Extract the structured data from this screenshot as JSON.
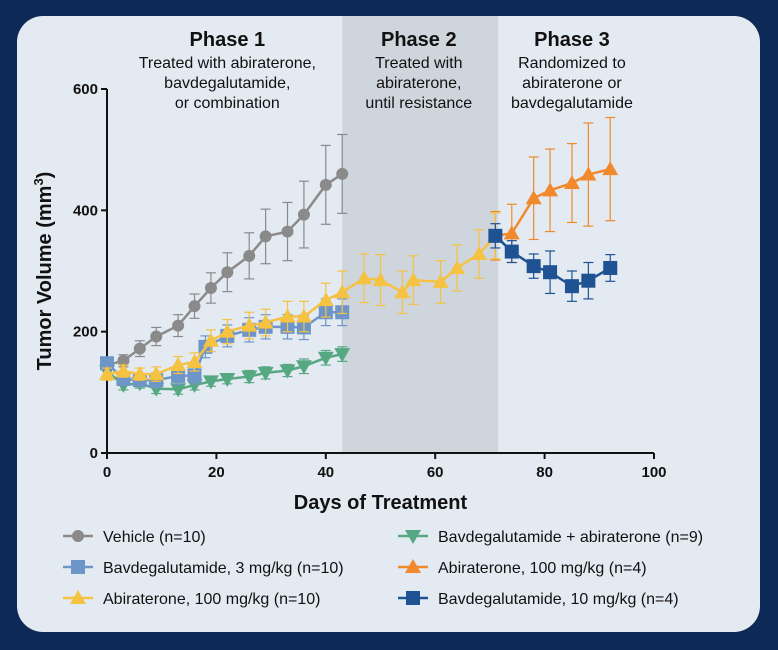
{
  "chart_data": {
    "type": "line",
    "xlabel": "Days of Treatment",
    "ylabel": "Tumor Volume (mm",
    "ylabel_sup": "3",
    "ylabel_close": ")",
    "xlim": [
      0,
      100
    ],
    "ylim": [
      0,
      600
    ],
    "xticks": [
      "0",
      "20",
      "40",
      "60",
      "80",
      "100"
    ],
    "yticks": [
      "0",
      "200",
      "400",
      "600"
    ],
    "grid": false,
    "legend_position": "bottom",
    "phases": [
      {
        "title": "Phase 1",
        "lines": [
          "Treated with abiraterone,",
          "bavdegalutamide,",
          "or combination"
        ],
        "x_center": 22
      },
      {
        "title": "Phase 2",
        "lines": [
          "Treated with",
          "abiraterone,",
          "until resistance"
        ],
        "x_center": 57,
        "shaded_range": [
          43,
          71.5
        ]
      },
      {
        "title": "Phase 3",
        "lines": [
          "Randomized to",
          "abiraterone or",
          "bavdegalutamide"
        ],
        "x_center": 85
      }
    ],
    "series": [
      {
        "name": "Vehicle (n=10)",
        "color": "#8a8a8a",
        "marker": "circle",
        "x": [
          0,
          3,
          6,
          9,
          13,
          16,
          19,
          22,
          26,
          29,
          33,
          36,
          40,
          43
        ],
        "y": [
          145,
          152,
          172,
          192,
          210,
          242,
          272,
          298,
          325,
          357,
          365,
          393,
          442,
          460
        ],
        "err": [
          10,
          10,
          13,
          15,
          18,
          20,
          25,
          32,
          38,
          45,
          48,
          55,
          65,
          65
        ]
      },
      {
        "name": "Bavdegalutamide + abiraterone (n=9)",
        "color": "#56a882",
        "marker": "triangle-down",
        "x": [
          0,
          3,
          6,
          9,
          13,
          16,
          19,
          22,
          26,
          29,
          33,
          36,
          40,
          43
        ],
        "y": [
          135,
          112,
          115,
          106,
          105,
          112,
          118,
          122,
          126,
          132,
          136,
          143,
          157,
          163
        ],
        "err": [
          8,
          8,
          8,
          8,
          8,
          8,
          8,
          8,
          10,
          10,
          10,
          12,
          12,
          12
        ]
      },
      {
        "name": "Bavdegalutamide, 3 mg/kg (n=10)",
        "color": "#6e95c8",
        "marker": "square",
        "x": [
          0,
          3,
          6,
          9,
          13,
          16,
          18,
          22,
          26,
          29,
          33,
          36,
          40,
          43
        ],
        "y": [
          148,
          122,
          120,
          120,
          127,
          128,
          175,
          193,
          203,
          208,
          208,
          207,
          232,
          232
        ],
        "err": [
          10,
          10,
          10,
          12,
          14,
          14,
          18,
          18,
          20,
          20,
          20,
          20,
          22,
          22
        ]
      },
      {
        "name": "Abiraterone, 100 mg/kg (n=4)",
        "color": "#f08a2c",
        "marker": "triangle-up",
        "x": [
          71,
          74,
          78,
          81,
          85,
          88,
          92
        ],
        "y": [
          358,
          362,
          420,
          433,
          445,
          459,
          468
        ],
        "err": [
          40,
          48,
          68,
          68,
          65,
          85,
          85
        ]
      },
      {
        "name": "Abiraterone, 100 mg/kg (n=10)",
        "color": "#f5c242",
        "marker": "triangle-up",
        "x": [
          0,
          3,
          6,
          9,
          13,
          16,
          19,
          22,
          26,
          29,
          33,
          36,
          40,
          43,
          47,
          50,
          54,
          56,
          61,
          64,
          68,
          71
        ],
        "y": [
          130,
          135,
          130,
          130,
          145,
          150,
          185,
          200,
          210,
          215,
          225,
          225,
          252,
          265,
          288,
          285,
          265,
          285,
          282,
          305,
          328,
          358
        ],
        "err": [
          10,
          10,
          10,
          12,
          14,
          15,
          18,
          20,
          22,
          22,
          25,
          25,
          28,
          35,
          40,
          42,
          35,
          40,
          35,
          38,
          40,
          38
        ]
      },
      {
        "name": "Bavdegalutamide, 10 mg/kg (n=4)",
        "color": "#1e5292",
        "marker": "square",
        "x": [
          71,
          74,
          78,
          81,
          85,
          88,
          92
        ],
        "y": [
          358,
          332,
          308,
          298,
          275,
          284,
          305
        ],
        "err": [
          20,
          18,
          20,
          35,
          25,
          30,
          22
        ]
      }
    ],
    "legend": [
      {
        "label": "Vehicle (n=10)",
        "series": 0
      },
      {
        "label": "Bavdegalutamide, 3 mg/kg (n=10)",
        "series": 2
      },
      {
        "label": "Abiraterone, 100 mg/kg (n=10)",
        "series": 4
      },
      {
        "label": "Bavdegalutamide + abiraterone (n=9)",
        "series": 1
      },
      {
        "label": "Abiraterone, 100 mg/kg (n=4)",
        "series": 3
      },
      {
        "label": "Bavdegalutamide, 10 mg/kg (n=4)",
        "series": 5
      }
    ]
  }
}
